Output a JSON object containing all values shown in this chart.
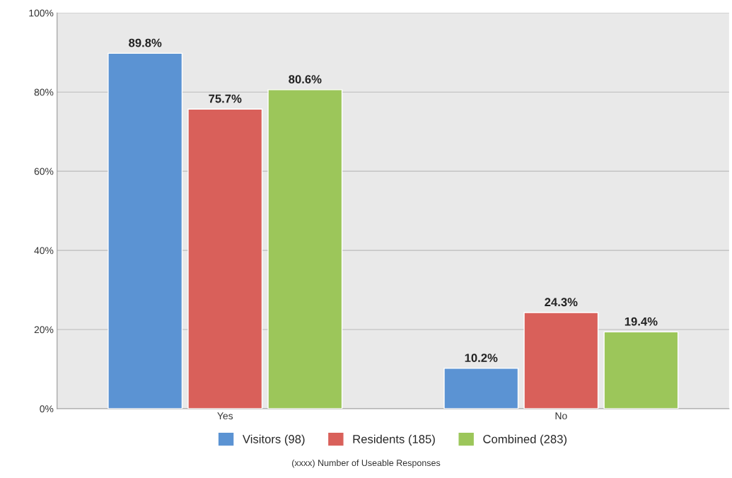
{
  "chart_data": {
    "type": "bar",
    "categories": [
      "Yes",
      "No"
    ],
    "series": [
      {
        "name": "Visitors (98)",
        "color": "#5b93d3",
        "values": [
          89.8,
          10.2
        ],
        "value_labels": [
          "89.8%",
          "10.2%"
        ]
      },
      {
        "name": "Residents (185)",
        "color": "#d9605a",
        "values": [
          75.7,
          24.3
        ],
        "value_labels": [
          "75.7%",
          "24.3%"
        ]
      },
      {
        "name": "Combined (283)",
        "color": "#9cc65a",
        "values": [
          80.6,
          19.4
        ],
        "value_labels": [
          "80.6%",
          "19.4%"
        ]
      }
    ],
    "ylim": [
      0,
      100
    ],
    "yticks": [
      {
        "value": 0,
        "label": "0%"
      },
      {
        "value": 20,
        "label": "20%"
      },
      {
        "value": 40,
        "label": "40%"
      },
      {
        "value": 60,
        "label": "60%"
      },
      {
        "value": 80,
        "label": "80%"
      },
      {
        "value": 100,
        "label": "100%"
      }
    ],
    "grid": "y",
    "legend": "bottom",
    "annotations": [
      "(xxxx) Number of Useable Responses"
    ]
  }
}
